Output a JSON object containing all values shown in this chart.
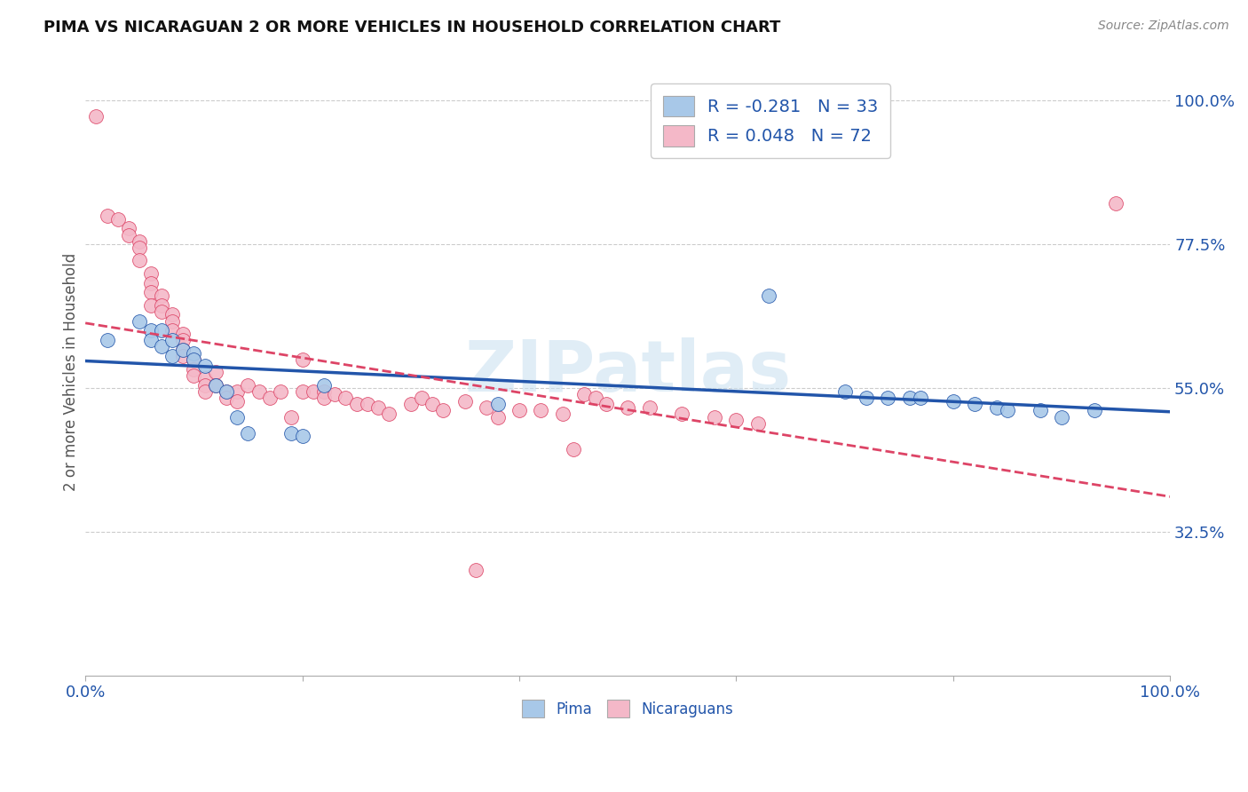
{
  "title": "PIMA VS NICARAGUAN 2 OR MORE VEHICLES IN HOUSEHOLD CORRELATION CHART",
  "source": "Source: ZipAtlas.com",
  "ylabel": "2 or more Vehicles in Household",
  "xmin": 0.0,
  "xmax": 1.0,
  "ymin": 0.1,
  "ymax": 1.05,
  "yticks": [
    0.325,
    0.55,
    0.775,
    1.0
  ],
  "ytick_labels": [
    "32.5%",
    "55.0%",
    "77.5%",
    "100.0%"
  ],
  "xticks": [
    0.0,
    0.2,
    0.4,
    0.6,
    0.8,
    1.0
  ],
  "xtick_labels": [
    "0.0%",
    "",
    "",
    "",
    "",
    "100.0%"
  ],
  "blue_color": "#a8c8e8",
  "pink_color": "#f4b8c8",
  "blue_line_color": "#2255aa",
  "pink_line_color": "#dd4466",
  "watermark": "ZIPatlas",
  "blue_x": [
    0.02,
    0.05,
    0.06,
    0.06,
    0.07,
    0.07,
    0.08,
    0.08,
    0.09,
    0.1,
    0.1,
    0.11,
    0.12,
    0.13,
    0.14,
    0.15,
    0.19,
    0.2,
    0.22,
    0.38,
    0.63,
    0.7,
    0.72,
    0.74,
    0.76,
    0.77,
    0.8,
    0.82,
    0.84,
    0.85,
    0.88,
    0.9,
    0.93
  ],
  "blue_y": [
    0.625,
    0.655,
    0.64,
    0.625,
    0.64,
    0.615,
    0.625,
    0.6,
    0.61,
    0.605,
    0.595,
    0.585,
    0.555,
    0.545,
    0.505,
    0.48,
    0.48,
    0.475,
    0.555,
    0.525,
    0.695,
    0.545,
    0.535,
    0.535,
    0.535,
    0.535,
    0.53,
    0.525,
    0.52,
    0.515,
    0.515,
    0.505,
    0.515
  ],
  "pink_x": [
    0.01,
    0.02,
    0.03,
    0.04,
    0.04,
    0.05,
    0.05,
    0.05,
    0.06,
    0.06,
    0.06,
    0.06,
    0.07,
    0.07,
    0.07,
    0.08,
    0.08,
    0.08,
    0.09,
    0.09,
    0.09,
    0.09,
    0.1,
    0.1,
    0.1,
    0.11,
    0.11,
    0.11,
    0.12,
    0.12,
    0.13,
    0.13,
    0.14,
    0.14,
    0.15,
    0.16,
    0.17,
    0.18,
    0.19,
    0.2,
    0.2,
    0.21,
    0.22,
    0.22,
    0.23,
    0.24,
    0.25,
    0.26,
    0.27,
    0.28,
    0.3,
    0.31,
    0.32,
    0.33,
    0.35,
    0.37,
    0.38,
    0.4,
    0.42,
    0.44,
    0.45,
    0.46,
    0.47,
    0.48,
    0.5,
    0.52,
    0.55,
    0.58,
    0.6,
    0.62,
    0.36,
    0.95
  ],
  "pink_y": [
    0.975,
    0.82,
    0.815,
    0.8,
    0.79,
    0.78,
    0.77,
    0.75,
    0.73,
    0.715,
    0.7,
    0.68,
    0.695,
    0.68,
    0.67,
    0.665,
    0.655,
    0.64,
    0.635,
    0.625,
    0.61,
    0.6,
    0.595,
    0.58,
    0.57,
    0.565,
    0.555,
    0.545,
    0.575,
    0.555,
    0.545,
    0.535,
    0.545,
    0.53,
    0.555,
    0.545,
    0.535,
    0.545,
    0.505,
    0.595,
    0.545,
    0.545,
    0.545,
    0.535,
    0.54,
    0.535,
    0.525,
    0.525,
    0.52,
    0.51,
    0.525,
    0.535,
    0.525,
    0.515,
    0.53,
    0.52,
    0.505,
    0.515,
    0.515,
    0.51,
    0.455,
    0.54,
    0.535,
    0.525,
    0.52,
    0.52,
    0.51,
    0.505,
    0.5,
    0.495,
    0.265,
    0.84
  ]
}
